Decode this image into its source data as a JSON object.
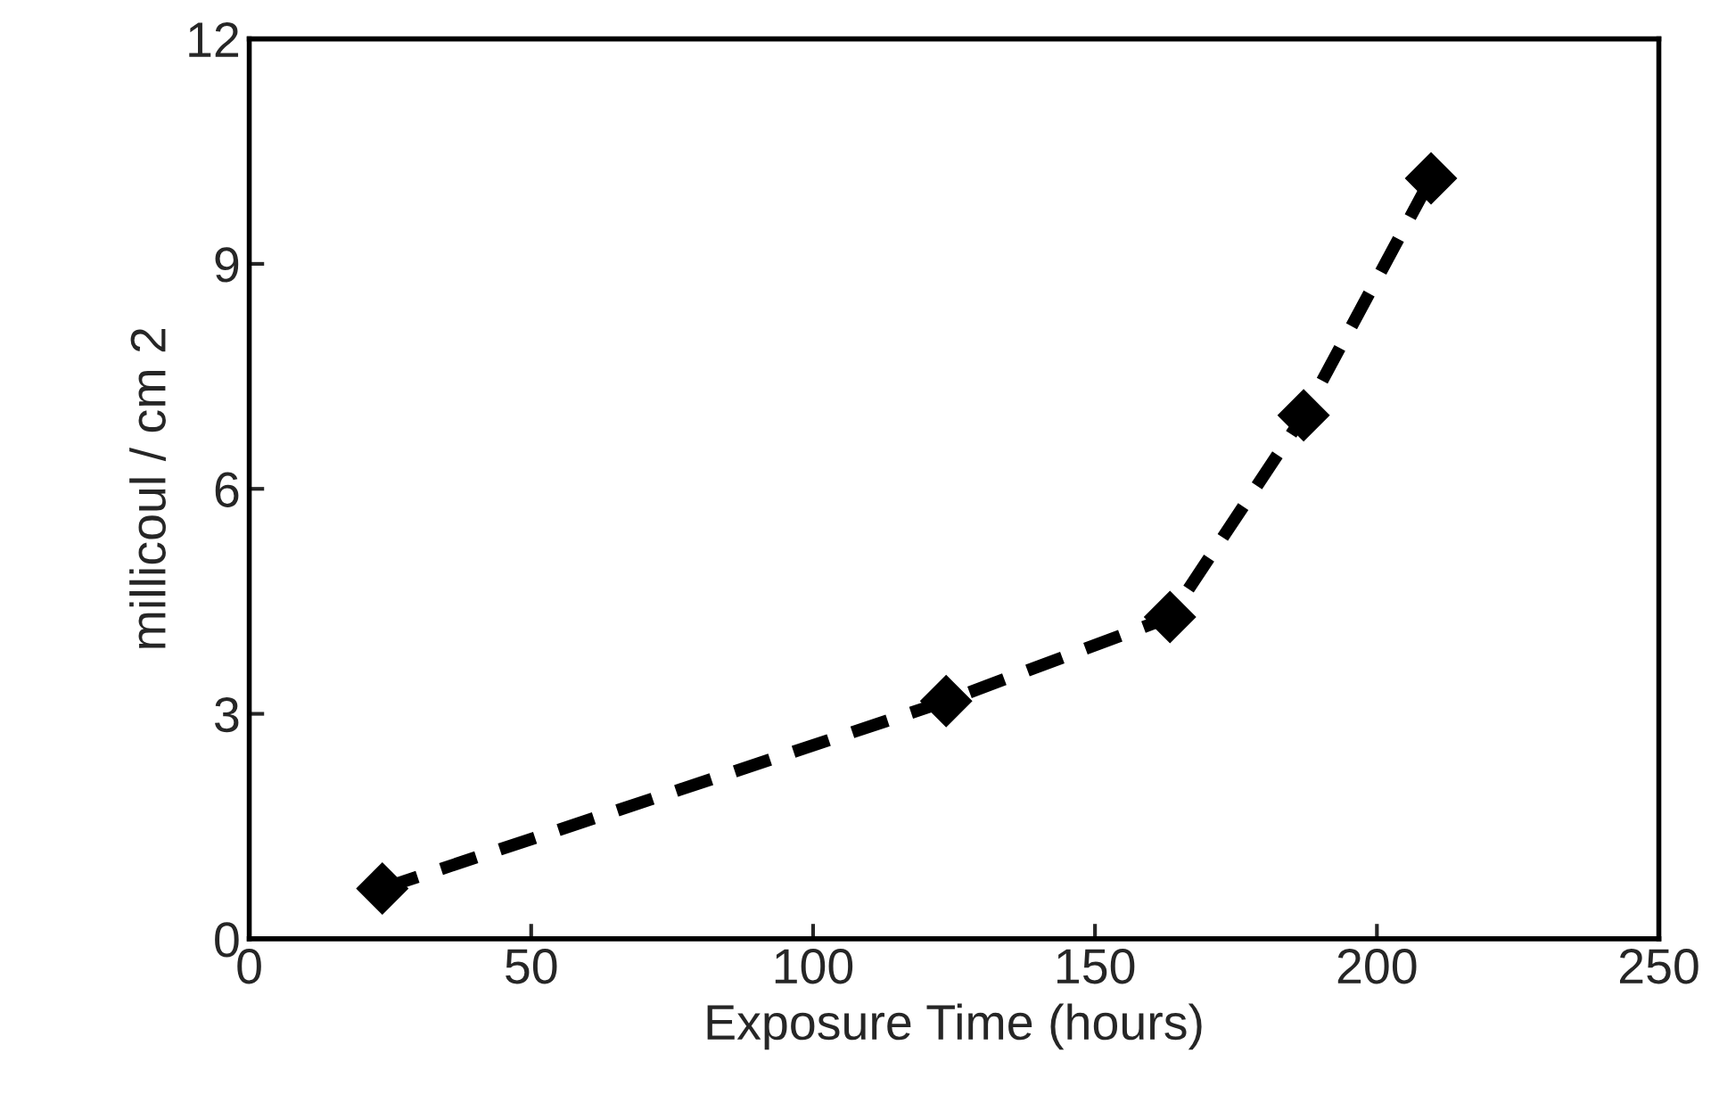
{
  "chart_data": {
    "type": "line",
    "xlabel": "Exposure Time (hours)",
    "ylabel": "millicoul / cm 2",
    "x": [
      23.6,
      123.6,
      163.3,
      187,
      209.6
    ],
    "series": [
      {
        "color": "#000000",
        "values": [
          0.67,
          3.17,
          4.29,
          6.98,
          10.14
        ]
      }
    ],
    "xlim": [
      0,
      250
    ],
    "ylim": [
      0,
      12
    ],
    "xticks": [
      0,
      50,
      100,
      150,
      200,
      250
    ],
    "yticks": [
      0,
      3,
      6,
      9,
      12
    ],
    "marker": "diamond",
    "line_style": "dashed",
    "grid": false,
    "legend": false
  }
}
